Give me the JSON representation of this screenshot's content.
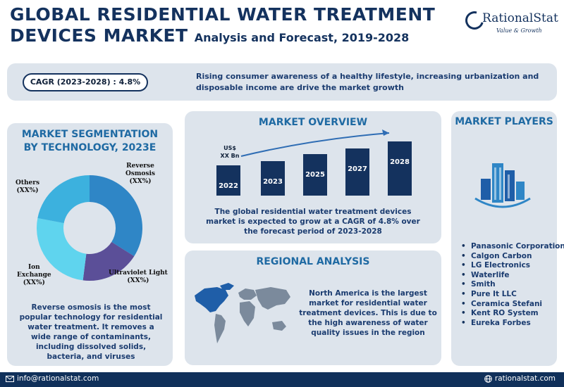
{
  "header": {
    "title_line1": "GLOBAL RESIDENTIAL WATER TREATMENT",
    "title_line2": "DEVICES MARKET",
    "subtitle": "Analysis and Forecast, 2019-2028"
  },
  "logo": {
    "name": "RationalStat",
    "tagline": "Value & Growth"
  },
  "banner": {
    "cagr": "CAGR (2023-2028) : 4.8%",
    "text": "Rising consumer awareness of a healthy lifestyle, increasing urbanization and disposable income are drive the market growth"
  },
  "segmentation": {
    "title": "MARKET SEGMENTATION BY  TECHNOLOGY, 2023E",
    "labels": {
      "reverse_osmosis": [
        "Reverse",
        "Osmosis",
        "(XX%)"
      ],
      "others": [
        "Others",
        "(XX%)"
      ],
      "ion_exchange": [
        "Ion",
        "Exchange",
        "(XX%)"
      ],
      "ultraviolet": [
        "Ultraviolet Light",
        "(XX%)"
      ]
    },
    "description": "Reverse osmosis is the most popular technology for residential water treatment. It removes a wide range of contaminants, including dissolved solids, bacteria, and viruses"
  },
  "overview": {
    "title": "MARKET OVERVIEW",
    "unit_label": [
      "US$",
      "XX Bn"
    ],
    "description": "The  global residential water treatment devices market is expected to grow at a CAGR of 4.8% over the forecast period of 2023-2028"
  },
  "regional": {
    "title": "REGIONAL ANALYSIS",
    "description": "North America is the largest market for residential water treatment devices. This is due to the high awareness of water quality issues in the region"
  },
  "players": {
    "title": "MARKET PLAYERS",
    "list": [
      "Panasonic Corporation",
      "Calgon Carbon",
      "LG Electronics",
      "Waterlife",
      "Smith",
      "Pure It LLC",
      "Ceramica Stefani",
      "Kent RO System",
      "Eureka Forbes"
    ]
  },
  "footer": {
    "email": "info@rationalstat.com",
    "website": "rationalstat.com"
  },
  "chart_data": [
    {
      "type": "pie",
      "categories": [
        "Reverse Osmosis",
        "Ultraviolet Light",
        "Ion Exchange",
        "Others"
      ],
      "values": [
        34,
        18,
        26,
        22
      ],
      "colors": [
        "#2f86c6",
        "#5b4f98",
        "#5fd4ee",
        "#3cb1de"
      ]
    },
    {
      "type": "bar",
      "categories": [
        "2022",
        "2023",
        "2025",
        "2027",
        "2028"
      ],
      "values": [
        43,
        49,
        59,
        67,
        77
      ],
      "color": "#14325e"
    }
  ],
  "colors": {
    "navy": "#14325e",
    "accent": "#1f6aa3",
    "panel": "#dde4ec",
    "footer": "#10305a"
  }
}
